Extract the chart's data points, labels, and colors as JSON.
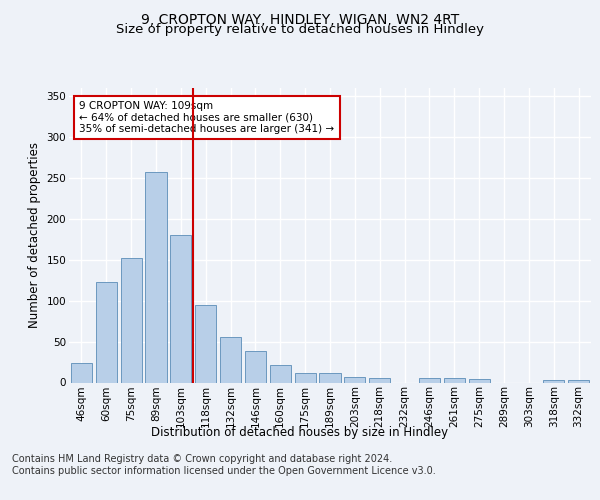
{
  "title1": "9, CROPTON WAY, HINDLEY, WIGAN, WN2 4RT",
  "title2": "Size of property relative to detached houses in Hindley",
  "xlabel": "Distribution of detached houses by size in Hindley",
  "ylabel": "Number of detached properties",
  "categories": [
    "46sqm",
    "60sqm",
    "75sqm",
    "89sqm",
    "103sqm",
    "118sqm",
    "132sqm",
    "146sqm",
    "160sqm",
    "175sqm",
    "189sqm",
    "203sqm",
    "218sqm",
    "232sqm",
    "246sqm",
    "261sqm",
    "275sqm",
    "289sqm",
    "303sqm",
    "318sqm",
    "332sqm"
  ],
  "values": [
    24,
    123,
    152,
    257,
    180,
    95,
    55,
    38,
    21,
    11,
    12,
    7,
    6,
    0,
    5,
    5,
    4,
    0,
    0,
    3,
    3
  ],
  "bar_color": "#b8cfe8",
  "bar_edge_color": "#5b8db8",
  "marker_index": 4,
  "marker_label_line1": "9 CROPTON WAY: 109sqm",
  "marker_label_line2": "← 64% of detached houses are smaller (630)",
  "marker_label_line3": "35% of semi-detached houses are larger (341) →",
  "marker_color": "#cc0000",
  "ylim": [
    0,
    360
  ],
  "yticks": [
    0,
    50,
    100,
    150,
    200,
    250,
    300,
    350
  ],
  "footer_line1": "Contains HM Land Registry data © Crown copyright and database right 2024.",
  "footer_line2": "Contains public sector information licensed under the Open Government Licence v3.0.",
  "bg_color": "#eef2f8",
  "grid_color": "#ffffff",
  "title1_fontsize": 10,
  "title2_fontsize": 9.5,
  "axis_label_fontsize": 8.5,
  "tick_fontsize": 7.5,
  "footer_fontsize": 7
}
